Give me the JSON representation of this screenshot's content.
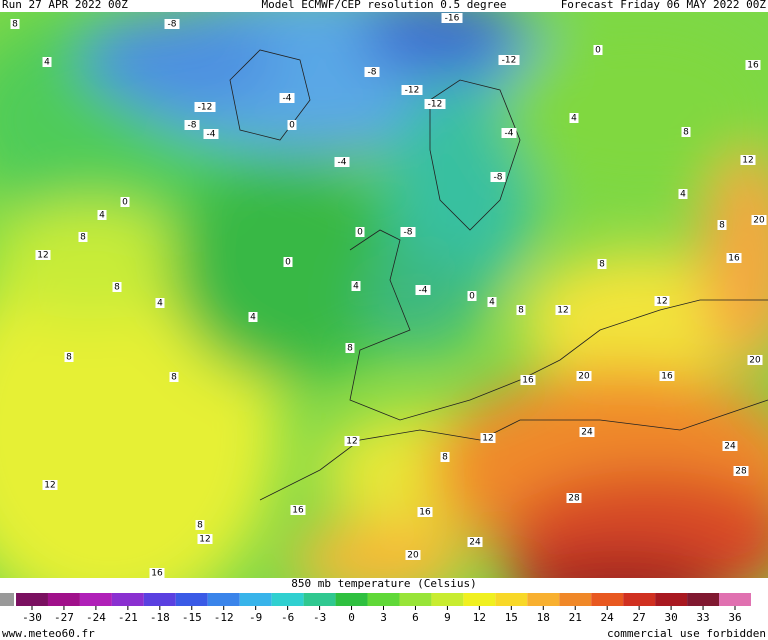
{
  "header": {
    "run": "Run 27 APR 2022 00Z",
    "model": "Model ECMWF/CEP resolution 0.5 degree",
    "forecast": "Forecast Friday 06 MAY 2022 00Z"
  },
  "colorbar": {
    "title": "850 mb temperature (Celsius)",
    "ticks": [
      -30,
      -27,
      -24,
      -21,
      -18,
      -15,
      -12,
      -9,
      -6,
      -3,
      0,
      3,
      6,
      9,
      12,
      15,
      18,
      21,
      24,
      27,
      30,
      33,
      36
    ],
    "colors": [
      "#7a1060",
      "#a0108a",
      "#b020b8",
      "#8a30d0",
      "#5a40e0",
      "#3a5ae6",
      "#3a84ea",
      "#38b4ea",
      "#30d0d0",
      "#30c890",
      "#2fc040",
      "#60d838",
      "#98e438",
      "#c8ec30",
      "#f0f020",
      "#f8d828",
      "#f8b030",
      "#f08828",
      "#e85820",
      "#d03020",
      "#a81820",
      "#801830",
      "#e070b0"
    ]
  },
  "footer": {
    "site": "www.meteo60.fr",
    "notice": "commercial use forbidden"
  },
  "contour_labels": [
    8,
    -8,
    -16,
    0,
    16,
    4,
    -8,
    -4,
    -12,
    -12,
    -12,
    -8,
    -4,
    0,
    -12,
    -4,
    4,
    8,
    12,
    -4,
    -8,
    0,
    4,
    8,
    12,
    0,
    -8,
    0,
    4,
    8,
    20,
    16,
    8,
    8,
    4,
    4,
    4,
    -4,
    0,
    4,
    8,
    12,
    12,
    8,
    8,
    8,
    16,
    20,
    16,
    20,
    12,
    12,
    24,
    24,
    8,
    28,
    12,
    16,
    16,
    28,
    8,
    12,
    24,
    20,
    16
  ]
}
